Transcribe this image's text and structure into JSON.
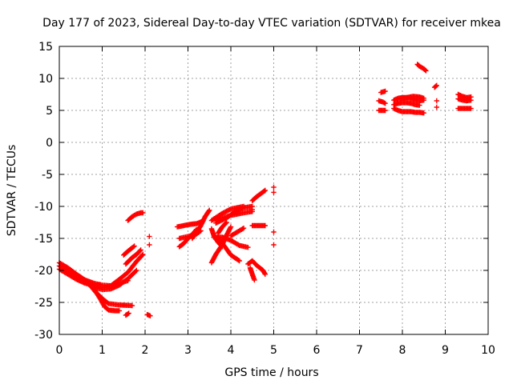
{
  "chart_data": {
    "type": "scatter",
    "title": "Day 177 of 2023, Sidereal Day-to-day VTEC variation (SDTVAR) for receiver mkea",
    "xlabel": "GPS time / hours",
    "ylabel": "SDTVAR / TECUs",
    "xlim": [
      0,
      10
    ],
    "ylim": [
      -30,
      15
    ],
    "xticks": [
      0,
      1,
      2,
      3,
      4,
      5,
      6,
      7,
      8,
      9,
      10
    ],
    "yticks": [
      15,
      10,
      5,
      0,
      -5,
      -10,
      -15,
      -20,
      -25,
      -30
    ],
    "grid": true,
    "marker": "plus",
    "color": "#ff0000",
    "segments": [
      {
        "points": [
          [
            0.0,
            -18.8
          ],
          [
            0.2,
            -19.6
          ],
          [
            0.4,
            -20.6
          ],
          [
            0.6,
            -21.5
          ],
          [
            0.8,
            -22.0
          ],
          [
            1.0,
            -22.3
          ],
          [
            1.2,
            -22.4
          ],
          [
            1.4,
            -22.0
          ],
          [
            1.6,
            -21.6
          ]
        ]
      },
      {
        "points": [
          [
            0.0,
            -19.3
          ],
          [
            0.2,
            -20.1
          ],
          [
            0.4,
            -21.0
          ],
          [
            0.6,
            -21.8
          ],
          [
            0.8,
            -22.4
          ],
          [
            1.0,
            -22.7
          ],
          [
            1.2,
            -22.4
          ],
          [
            1.4,
            -21.4
          ],
          [
            1.6,
            -20.3
          ],
          [
            1.8,
            -18.6
          ],
          [
            1.95,
            -17.5
          ]
        ]
      },
      {
        "points": [
          [
            0.0,
            -19.8
          ],
          [
            0.2,
            -20.6
          ],
          [
            0.4,
            -21.4
          ],
          [
            0.6,
            -22.0
          ],
          [
            0.8,
            -22.4
          ],
          [
            0.95,
            -22.2
          ]
        ]
      },
      {
        "points": [
          [
            0.2,
            -19.8
          ],
          [
            0.4,
            -20.8
          ],
          [
            0.6,
            -21.7
          ],
          [
            0.8,
            -22.6
          ],
          [
            1.0,
            -23.0
          ],
          [
            1.2,
            -22.9
          ],
          [
            1.4,
            -22.3
          ],
          [
            1.6,
            -21.3
          ],
          [
            1.8,
            -20.0
          ]
        ]
      },
      {
        "points": [
          [
            0.7,
            -22.2
          ],
          [
            0.85,
            -23.4
          ],
          [
            1.0,
            -24.4
          ],
          [
            1.15,
            -25.2
          ],
          [
            1.4,
            -25.4
          ],
          [
            1.7,
            -25.5
          ]
        ]
      },
      {
        "points": [
          [
            0.8,
            -22.8
          ],
          [
            0.95,
            -24.4
          ],
          [
            1.05,
            -25.6
          ],
          [
            1.15,
            -26.2
          ],
          [
            1.3,
            -26.3
          ],
          [
            1.4,
            -26.3
          ]
        ]
      },
      {
        "points": [
          [
            1.5,
            -17.6
          ],
          [
            1.6,
            -17.0
          ],
          [
            1.75,
            -16.2
          ]
        ]
      },
      {
        "points": [
          [
            1.55,
            -19.0
          ],
          [
            1.7,
            -18.0
          ],
          [
            1.8,
            -17.5
          ],
          [
            1.9,
            -16.8
          ]
        ]
      },
      {
        "points": [
          [
            1.55,
            -27.0
          ],
          [
            1.62,
            -26.7
          ]
        ]
      },
      {
        "points": [
          [
            2.05,
            -26.9
          ],
          [
            2.12,
            -27.1
          ]
        ]
      },
      {
        "points": [
          [
            2.1,
            -14.7
          ]
        ]
      },
      {
        "points": [
          [
            2.1,
            -16.0
          ]
        ]
      },
      {
        "points": [
          [
            1.6,
            -12.2
          ],
          [
            1.7,
            -11.6
          ],
          [
            1.8,
            -11.2
          ],
          [
            1.9,
            -11.0
          ],
          [
            1.95,
            -11.0
          ]
        ]
      },
      {
        "points": [
          [
            2.8,
            -16.3
          ],
          [
            2.9,
            -15.8
          ],
          [
            3.0,
            -15.0
          ],
          [
            3.1,
            -14.4
          ],
          [
            3.2,
            -13.6
          ]
        ]
      },
      {
        "points": [
          [
            2.8,
            -15.0
          ],
          [
            3.0,
            -14.7
          ],
          [
            3.2,
            -14.3
          ],
          [
            3.3,
            -13.8
          ]
        ]
      },
      {
        "points": [
          [
            2.75,
            -13.2
          ],
          [
            2.9,
            -13.0
          ],
          [
            3.05,
            -12.8
          ],
          [
            3.2,
            -12.7
          ],
          [
            3.35,
            -12.3
          ]
        ]
      },
      {
        "points": [
          [
            3.1,
            -15.0
          ],
          [
            3.2,
            -14.0
          ],
          [
            3.3,
            -13.0
          ],
          [
            3.4,
            -11.6
          ],
          [
            3.5,
            -10.6
          ]
        ]
      },
      {
        "points": [
          [
            3.55,
            -13.5
          ],
          [
            3.6,
            -14.5
          ],
          [
            3.7,
            -15.6
          ],
          [
            3.8,
            -16.3
          ]
        ]
      },
      {
        "points": [
          [
            3.6,
            -14.8
          ],
          [
            3.8,
            -14.8
          ],
          [
            4.0,
            -15.3
          ],
          [
            4.2,
            -16.1
          ],
          [
            4.4,
            -16.4
          ]
        ]
      },
      {
        "points": [
          [
            3.55,
            -18.8
          ],
          [
            3.65,
            -17.5
          ],
          [
            3.8,
            -16.0
          ],
          [
            3.9,
            -14.5
          ],
          [
            4.0,
            -13.2
          ]
        ]
      },
      {
        "points": [
          [
            3.7,
            -14.8
          ],
          [
            3.85,
            -16.2
          ],
          [
            4.0,
            -17.6
          ],
          [
            4.2,
            -18.5
          ]
        ]
      },
      {
        "points": [
          [
            3.6,
            -12.0
          ],
          [
            3.8,
            -11.8
          ],
          [
            4.0,
            -11.4
          ],
          [
            4.3,
            -11.0
          ],
          [
            4.5,
            -10.8
          ]
        ]
      },
      {
        "points": [
          [
            3.65,
            -12.6
          ],
          [
            3.9,
            -11.8
          ],
          [
            4.1,
            -10.8
          ],
          [
            4.3,
            -10.2
          ],
          [
            4.5,
            -10.0
          ]
        ]
      },
      {
        "points": [
          [
            3.55,
            -12.2
          ],
          [
            3.8,
            -11.1
          ],
          [
            4.0,
            -10.4
          ],
          [
            4.3,
            -10.0
          ]
        ]
      },
      {
        "points": [
          [
            3.7,
            -14.2
          ],
          [
            3.8,
            -13.2
          ],
          [
            3.9,
            -12.5
          ]
        ]
      },
      {
        "points": [
          [
            4.0,
            -14.6
          ],
          [
            4.2,
            -13.8
          ],
          [
            4.3,
            -13.4
          ]
        ]
      },
      {
        "points": [
          [
            4.5,
            -13.0
          ],
          [
            4.6,
            -13.0
          ],
          [
            4.7,
            -13.0
          ],
          [
            4.8,
            -13.0
          ]
        ]
      },
      {
        "points": [
          [
            4.5,
            -9.1
          ],
          [
            4.6,
            -8.5
          ],
          [
            4.7,
            -8.0
          ],
          [
            4.8,
            -7.5
          ]
        ]
      },
      {
        "points": [
          [
            4.5,
            -10.5
          ]
        ]
      },
      {
        "points": [
          [
            5.0,
            -7.0
          ]
        ]
      },
      {
        "points": [
          [
            5.0,
            -7.8
          ]
        ]
      },
      {
        "points": [
          [
            5.0,
            -14.0
          ]
        ]
      },
      {
        "points": [
          [
            5.0,
            -16.0
          ]
        ]
      },
      {
        "points": [
          [
            4.4,
            -19.0
          ],
          [
            4.5,
            -18.5
          ],
          [
            4.6,
            -19.2
          ],
          [
            4.75,
            -20.0
          ],
          [
            4.8,
            -20.6
          ]
        ]
      },
      {
        "points": [
          [
            4.45,
            -19.6
          ],
          [
            4.5,
            -20.6
          ],
          [
            4.55,
            -21.5
          ]
        ]
      },
      {
        "points": [
          [
            7.5,
            7.8
          ],
          [
            7.55,
            7.9
          ],
          [
            7.6,
            8.0
          ]
        ]
      },
      {
        "points": [
          [
            7.45,
            6.5
          ],
          [
            7.55,
            6.3
          ],
          [
            7.6,
            6.1
          ]
        ]
      },
      {
        "points": [
          [
            7.45,
            5.0
          ],
          [
            7.55,
            5.0
          ],
          [
            7.6,
            5.0
          ]
        ]
      },
      {
        "points": [
          [
            7.8,
            6.6
          ],
          [
            7.9,
            6.9
          ],
          [
            8.0,
            7.0
          ],
          [
            8.1,
            7.0
          ],
          [
            8.2,
            6.9
          ],
          [
            8.3,
            6.6
          ],
          [
            8.4,
            6.5
          ],
          [
            8.5,
            6.6
          ]
        ]
      },
      {
        "points": [
          [
            7.8,
            5.9
          ],
          [
            7.9,
            6.1
          ],
          [
            8.0,
            6.2
          ],
          [
            8.1,
            6.2
          ],
          [
            8.2,
            6.1
          ],
          [
            8.3,
            5.9
          ],
          [
            8.4,
            5.8
          ]
        ]
      },
      {
        "points": [
          [
            7.8,
            5.3
          ],
          [
            7.9,
            5.0
          ],
          [
            8.0,
            4.8
          ],
          [
            8.1,
            4.8
          ],
          [
            8.2,
            4.8
          ],
          [
            8.3,
            4.7
          ],
          [
            8.4,
            4.7
          ],
          [
            8.5,
            4.6
          ]
        ]
      },
      {
        "points": [
          [
            7.95,
            6.8
          ],
          [
            8.1,
            7.0
          ],
          [
            8.25,
            7.2
          ],
          [
            8.4,
            7.1
          ],
          [
            8.5,
            6.9
          ]
        ]
      },
      {
        "points": [
          [
            8.35,
            12.2
          ],
          [
            8.4,
            11.9
          ],
          [
            8.5,
            11.5
          ],
          [
            8.55,
            11.2
          ]
        ]
      },
      {
        "points": [
          [
            8.75,
            8.6
          ],
          [
            8.8,
            8.9
          ]
        ]
      },
      {
        "points": [
          [
            8.8,
            6.5
          ]
        ]
      },
      {
        "points": [
          [
            8.8,
            5.5
          ]
        ]
      },
      {
        "points": [
          [
            9.3,
            7.5
          ],
          [
            9.4,
            7.2
          ],
          [
            9.5,
            7.0
          ],
          [
            9.6,
            7.1
          ]
        ]
      },
      {
        "points": [
          [
            9.3,
            6.8
          ],
          [
            9.4,
            6.6
          ],
          [
            9.5,
            6.5
          ],
          [
            9.6,
            6.6
          ]
        ]
      },
      {
        "points": [
          [
            9.3,
            5.3
          ],
          [
            9.4,
            5.3
          ],
          [
            9.5,
            5.3
          ],
          [
            9.6,
            5.3
          ]
        ]
      }
    ]
  }
}
